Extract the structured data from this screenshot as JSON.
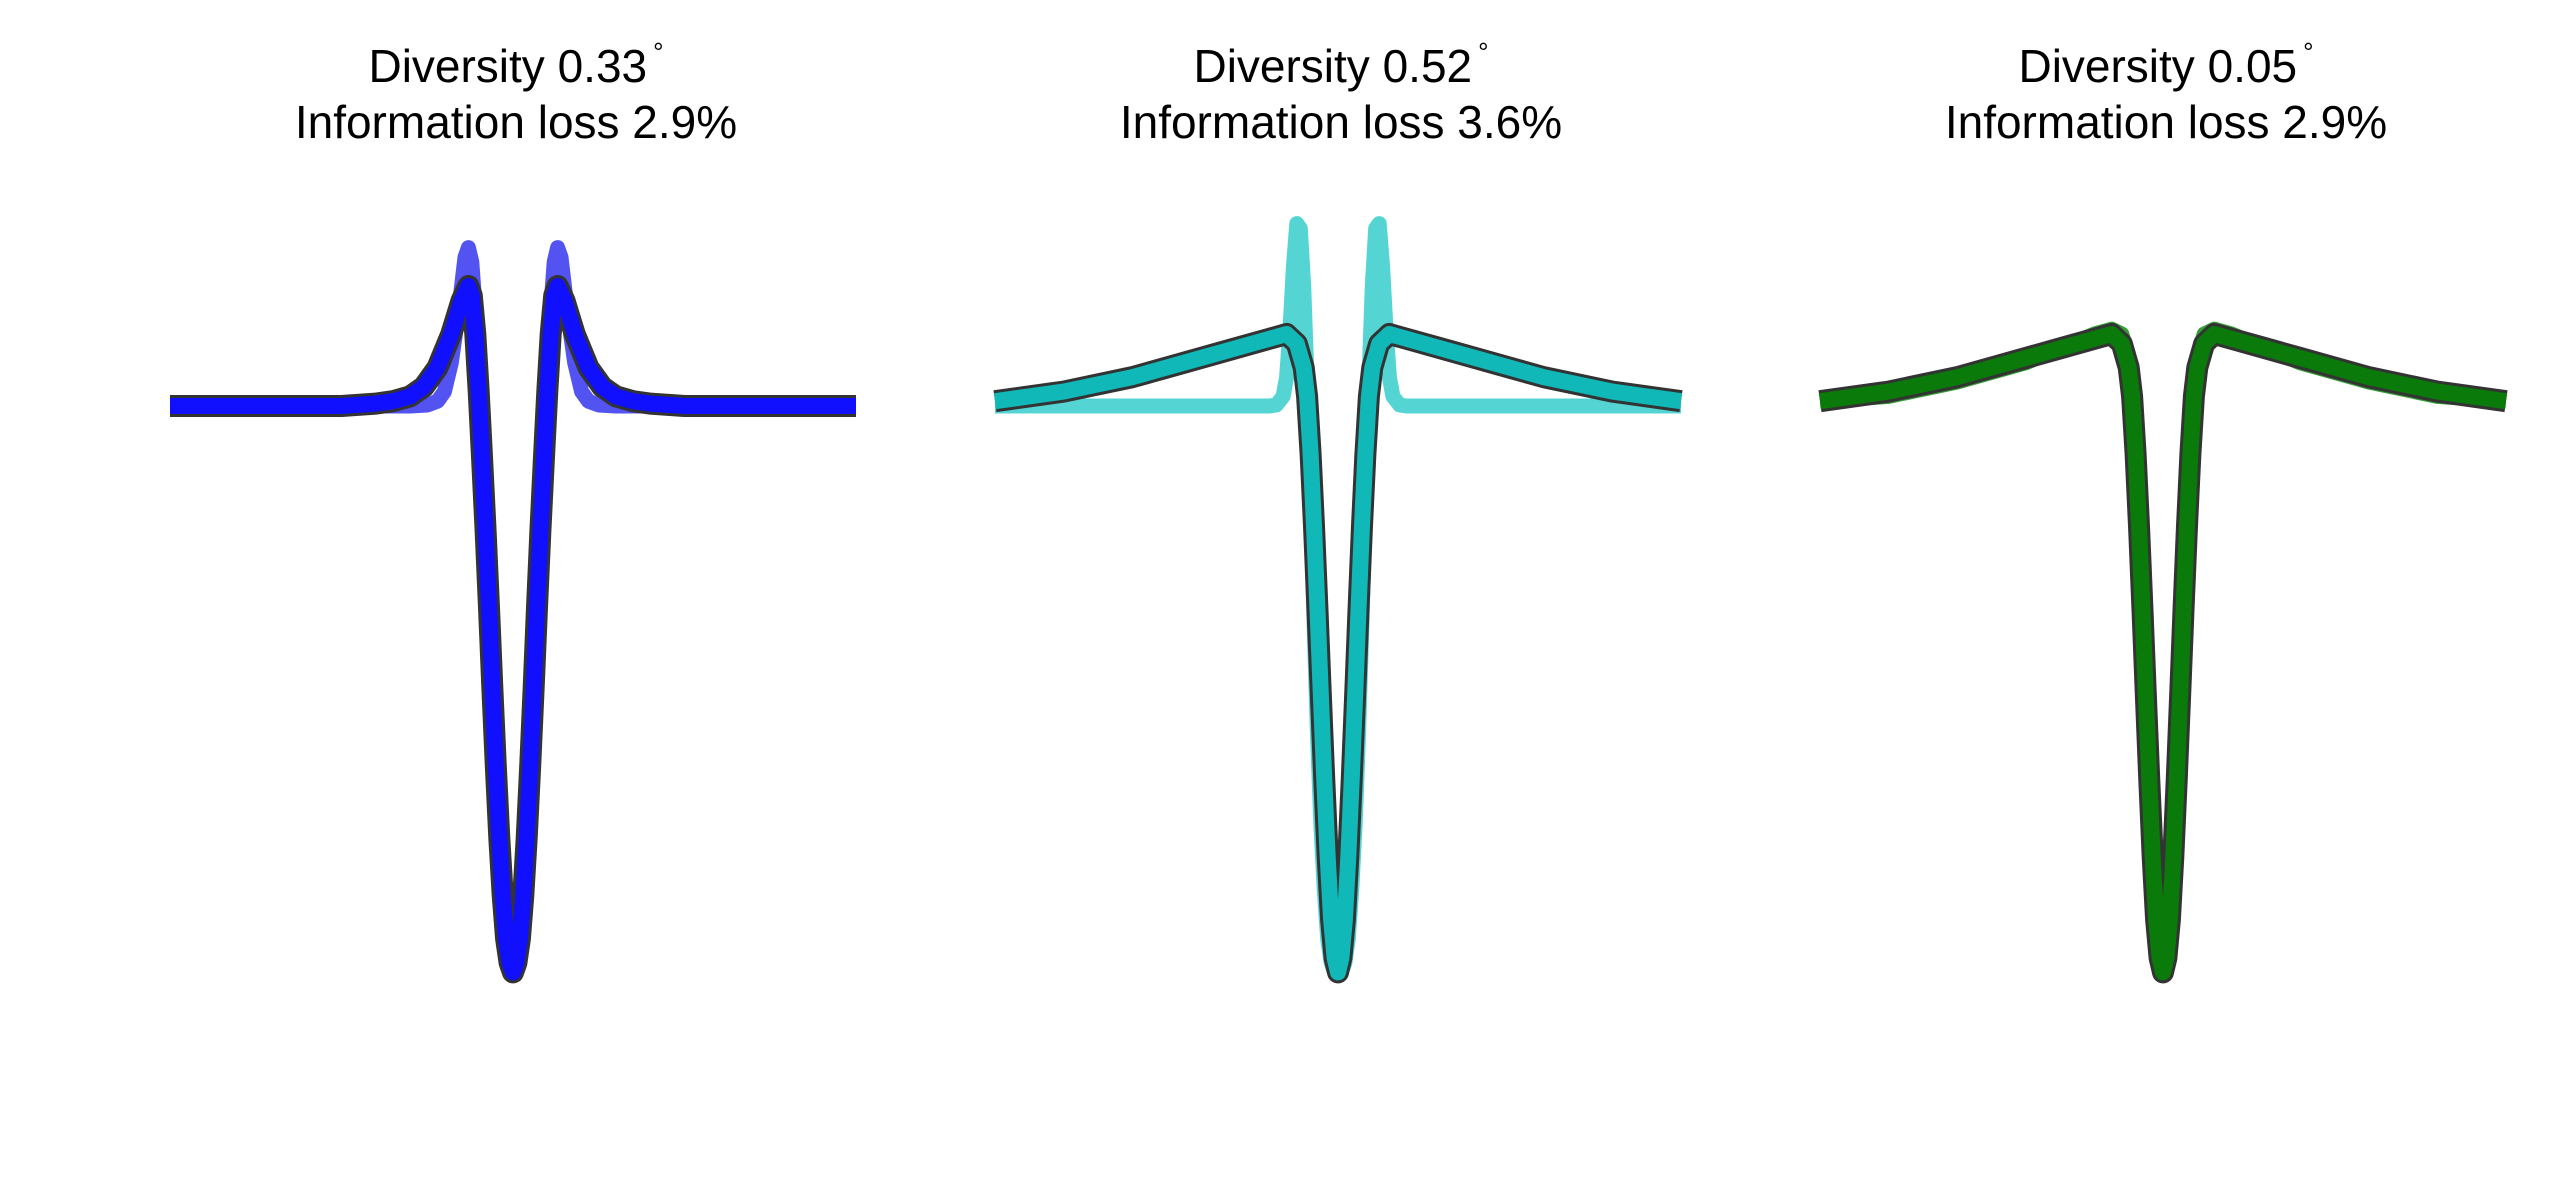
{
  "chart_data": [
    {
      "type": "line",
      "title_line1": "Diversity 0.33",
      "title_symbol": "°",
      "title_line2": "Information loss 2.9%",
      "xlim": [
        -1,
        1
      ],
      "ylim": [
        -1.3,
        0.45
      ],
      "colors": {
        "primary": "#1010ff",
        "secondary": "#4a4af0"
      },
      "series": [
        {
          "x": [
            -1,
            -0.9,
            -0.8,
            -0.7,
            -0.6,
            -0.5,
            -0.4,
            -0.35,
            -0.3,
            -0.26,
            -0.22,
            -0.18,
            -0.15,
            -0.13,
            -0.12,
            -0.11,
            -0.1,
            -0.09,
            -0.08,
            -0.07,
            -0.06,
            -0.05,
            -0.04,
            -0.03,
            -0.02,
            -0.01,
            0,
            0.01,
            0.02,
            0.03,
            0.04,
            0.05,
            0.06,
            0.07,
            0.08,
            0.09,
            0.1,
            0.11,
            0.12,
            0.13,
            0.15,
            0.18,
            0.22,
            0.26,
            0.3,
            0.35,
            0.4,
            0.5,
            0.6,
            0.7,
            0.8,
            0.9,
            1
          ],
          "y": [
            0,
            0,
            0,
            0,
            0,
            0,
            0.005,
            0.01,
            0.02,
            0.04,
            0.08,
            0.15,
            0.22,
            0.25,
            0.23,
            0.15,
            0.03,
            -0.11,
            -0.26,
            -0.42,
            -0.59,
            -0.75,
            -0.9,
            -1.02,
            -1.11,
            -1.16,
            -1.18,
            -1.16,
            -1.11,
            -1.02,
            -0.9,
            -0.75,
            -0.59,
            -0.42,
            -0.26,
            -0.11,
            0.03,
            0.15,
            0.23,
            0.25,
            0.22,
            0.15,
            0.08,
            0.04,
            0.02,
            0.01,
            0.005,
            0,
            0,
            0,
            0,
            0,
            0
          ]
        },
        {
          "x": [
            -1,
            -0.5,
            -0.3,
            -0.25,
            -0.22,
            -0.2,
            -0.18,
            -0.16,
            -0.15,
            -0.14,
            -0.13,
            -0.12,
            -0.11,
            -0.1,
            -0.09,
            -0.08,
            -0.07,
            -0.06,
            -0.05,
            -0.04,
            -0.03,
            -0.02,
            -0.01,
            0,
            0.01,
            0.02,
            0.03,
            0.04,
            0.05,
            0.06,
            0.07,
            0.08,
            0.09,
            0.1,
            0.11,
            0.12,
            0.13,
            0.14,
            0.15,
            0.16,
            0.18,
            0.2,
            0.22,
            0.25,
            0.3,
            0.5,
            1
          ],
          "y": [
            0,
            0,
            0,
            0.002,
            0.01,
            0.03,
            0.09,
            0.19,
            0.25,
            0.31,
            0.33,
            0.3,
            0.2,
            0.05,
            -0.12,
            -0.3,
            -0.48,
            -0.65,
            -0.8,
            -0.93,
            -1.04,
            -1.12,
            -1.16,
            -1.18,
            -1.16,
            -1.12,
            -1.04,
            -0.93,
            -0.8,
            -0.65,
            -0.48,
            -0.3,
            -0.12,
            0.05,
            0.2,
            0.3,
            0.33,
            0.31,
            0.25,
            0.19,
            0.09,
            0.03,
            0.01,
            0.002,
            0,
            0,
            0
          ]
        }
      ]
    },
    {
      "type": "line",
      "title_line1": "Diversity 0.52",
      "title_symbol": "°",
      "title_line2": "Information loss 3.6%",
      "xlim": [
        -1,
        1
      ],
      "ylim": [
        -1.3,
        0.45
      ],
      "colors": {
        "primary": "#10b8b8",
        "secondary": "#4cd2d2"
      },
      "series": [
        {
          "x": [
            -1,
            -0.8,
            -0.6,
            -0.5,
            -0.4,
            -0.3,
            -0.2,
            -0.15,
            -0.12,
            -0.1,
            -0.09,
            -0.08,
            -0.07,
            -0.06,
            -0.05,
            -0.04,
            -0.03,
            -0.02,
            -0.01,
            0,
            0.01,
            0.02,
            0.03,
            0.04,
            0.05,
            0.06,
            0.07,
            0.08,
            0.09,
            0.1,
            0.12,
            0.15,
            0.2,
            0.3,
            0.4,
            0.5,
            0.6,
            0.8,
            1
          ],
          "y": [
            0.01,
            0.03,
            0.06,
            0.08,
            0.1,
            0.12,
            0.14,
            0.15,
            0.13,
            0.08,
            0.02,
            -0.1,
            -0.25,
            -0.42,
            -0.6,
            -0.78,
            -0.94,
            -1.07,
            -1.15,
            -1.18,
            -1.15,
            -1.07,
            -0.94,
            -0.78,
            -0.6,
            -0.42,
            -0.25,
            -0.1,
            0.02,
            0.08,
            0.13,
            0.15,
            0.14,
            0.12,
            0.1,
            0.08,
            0.06,
            0.03,
            0.01
          ]
        },
        {
          "x": [
            -1,
            -0.4,
            -0.25,
            -0.2,
            -0.18,
            -0.16,
            -0.15,
            -0.14,
            -0.13,
            -0.12,
            -0.11,
            -0.1,
            -0.09,
            -0.08,
            -0.07,
            -0.06,
            -0.05,
            -0.04,
            -0.03,
            -0.02,
            -0.01,
            0,
            0.01,
            0.02,
            0.03,
            0.04,
            0.05,
            0.06,
            0.07,
            0.08,
            0.09,
            0.1,
            0.11,
            0.12,
            0.13,
            0.14,
            0.15,
            0.16,
            0.18,
            0.2,
            0.25,
            0.4,
            1
          ],
          "y": [
            0,
            0,
            0,
            0,
            0.002,
            0.02,
            0.06,
            0.16,
            0.29,
            0.38,
            0.37,
            0.25,
            0.05,
            -0.2,
            -0.45,
            -0.68,
            -0.87,
            -1.01,
            -1.11,
            -1.16,
            -1.18,
            -1.18,
            -1.18,
            -1.16,
            -1.11,
            -1.01,
            -0.87,
            -0.68,
            -0.45,
            -0.2,
            0.05,
            0.25,
            0.37,
            0.38,
            0.29,
            0.16,
            0.06,
            0.02,
            0.002,
            0,
            0,
            0,
            0
          ]
        }
      ]
    },
    {
      "type": "line",
      "title_line1": "Diversity 0.05",
      "title_symbol": "°",
      "title_line2": "Information loss 2.9%",
      "xlim": [
        -1,
        1
      ],
      "ylim": [
        -1.3,
        0.45
      ],
      "colors": {
        "primary": "#0a7a0a",
        "secondary": "#2a9a2a"
      },
      "series": [
        {
          "x": [
            -1,
            -0.8,
            -0.6,
            -0.5,
            -0.4,
            -0.3,
            -0.2,
            -0.15,
            -0.12,
            -0.1,
            -0.09,
            -0.08,
            -0.07,
            -0.06,
            -0.05,
            -0.04,
            -0.03,
            -0.02,
            -0.01,
            0,
            0.01,
            0.02,
            0.03,
            0.04,
            0.05,
            0.06,
            0.07,
            0.08,
            0.09,
            0.1,
            0.12,
            0.15,
            0.2,
            0.3,
            0.4,
            0.5,
            0.6,
            0.8,
            1
          ],
          "y": [
            0.01,
            0.03,
            0.06,
            0.08,
            0.1,
            0.12,
            0.14,
            0.15,
            0.13,
            0.08,
            0.02,
            -0.1,
            -0.25,
            -0.42,
            -0.6,
            -0.78,
            -0.94,
            -1.07,
            -1.15,
            -1.18,
            -1.15,
            -1.07,
            -0.94,
            -0.78,
            -0.6,
            -0.42,
            -0.25,
            -0.1,
            0.02,
            0.08,
            0.13,
            0.15,
            0.14,
            0.12,
            0.1,
            0.08,
            0.06,
            0.03,
            0.01
          ]
        },
        {
          "x": [
            -1,
            -0.8,
            -0.6,
            -0.5,
            -0.4,
            -0.3,
            -0.2,
            -0.15,
            -0.12,
            -0.1,
            -0.09,
            -0.08,
            -0.07,
            -0.06,
            -0.05,
            -0.04,
            -0.03,
            -0.02,
            -0.01,
            0,
            0.01,
            0.02,
            0.03,
            0.04,
            0.05,
            0.06,
            0.07,
            0.08,
            0.09,
            0.1,
            0.12,
            0.15,
            0.2,
            0.3,
            0.4,
            0.5,
            0.6,
            0.8,
            1
          ],
          "y": [
            0.01,
            0.02,
            0.05,
            0.07,
            0.09,
            0.12,
            0.15,
            0.16,
            0.15,
            0.1,
            0.03,
            -0.1,
            -0.26,
            -0.43,
            -0.61,
            -0.79,
            -0.95,
            -1.08,
            -1.15,
            -1.18,
            -1.15,
            -1.08,
            -0.95,
            -0.79,
            -0.61,
            -0.43,
            -0.26,
            -0.1,
            0.03,
            0.1,
            0.15,
            0.16,
            0.15,
            0.12,
            0.09,
            0.07,
            0.05,
            0.02,
            0.01
          ]
        }
      ]
    }
  ]
}
